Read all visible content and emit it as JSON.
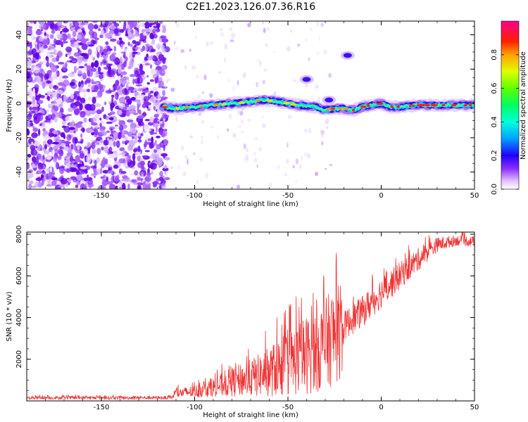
{
  "figure": {
    "title": "C2E1.2023.126.07.36.R16"
  },
  "chart_data": [
    {
      "type": "heatmap",
      "xlabel": "Height of straight line (km)",
      "ylabel": "Frequency (Hz)",
      "xlim": [
        -190,
        50
      ],
      "ylim": [
        -50,
        48
      ],
      "xticks": [
        -150,
        -100,
        -50,
        0,
        50
      ],
      "yticks": [
        -40,
        -20,
        0,
        20,
        40
      ],
      "colorbar": {
        "label": "Normalized spectral amplitude",
        "range": [
          0,
          1
        ],
        "ticks": [
          0.0,
          0.2,
          0.4,
          0.6,
          0.8
        ],
        "colors": [
          "#ffffff",
          "#c060ff",
          "#2000ff",
          "#00c0ff",
          "#00ff80",
          "#80ff00",
          "#ffff00",
          "#ff8000",
          "#ff0000",
          "#ff0080"
        ]
      },
      "noise_region_x": [
        -190,
        -117
      ],
      "signal_track": {
        "x": [
          -117,
          -110,
          -100,
          -90,
          -80,
          -70,
          -62,
          -55,
          -45,
          -35,
          -30,
          -25,
          -20,
          -15,
          -10,
          -5,
          0,
          5,
          10,
          20,
          30,
          40,
          50
        ],
        "y": [
          -2,
          -3,
          -2,
          -1,
          0,
          1,
          2,
          1,
          -1,
          -2,
          -4,
          -3,
          -3,
          -4,
          -2,
          -1,
          0,
          -2,
          -2,
          -1,
          -1,
          -1,
          -1
        ]
      },
      "side_blobs": [
        {
          "x": -40,
          "y": 14
        },
        {
          "x": -18,
          "y": 28
        },
        {
          "x": -28,
          "y": 2
        }
      ]
    },
    {
      "type": "line",
      "xlabel": "Height of straight line (km)",
      "ylabel": "SNR (10 * v/v)",
      "xlim": [
        -190,
        50
      ],
      "ylim": [
        0,
        8100
      ],
      "xticks": [
        -150,
        -100,
        -50,
        0,
        50
      ],
      "yticks": [
        2000,
        4000,
        6000,
        8000
      ],
      "color": "#ee3333",
      "envelope": {
        "x": [
          -190,
          -112,
          -111,
          -100,
          -90,
          -80,
          -70,
          -60,
          -50,
          -40,
          -30,
          -25,
          -21,
          -20,
          -10,
          0,
          10,
          20,
          30,
          40,
          50
        ],
        "mean": [
          150,
          150,
          350,
          450,
          650,
          900,
          1100,
          1400,
          1800,
          2200,
          2700,
          3200,
          3300,
          3600,
          4300,
          5200,
          6000,
          6800,
          7500,
          7700,
          7650
        ],
        "amp": [
          80,
          80,
          200,
          300,
          450,
          700,
          900,
          1200,
          1600,
          1900,
          2200,
          2400,
          2200,
          700,
          750,
          750,
          650,
          550,
          350,
          250,
          250
        ]
      }
    }
  ]
}
